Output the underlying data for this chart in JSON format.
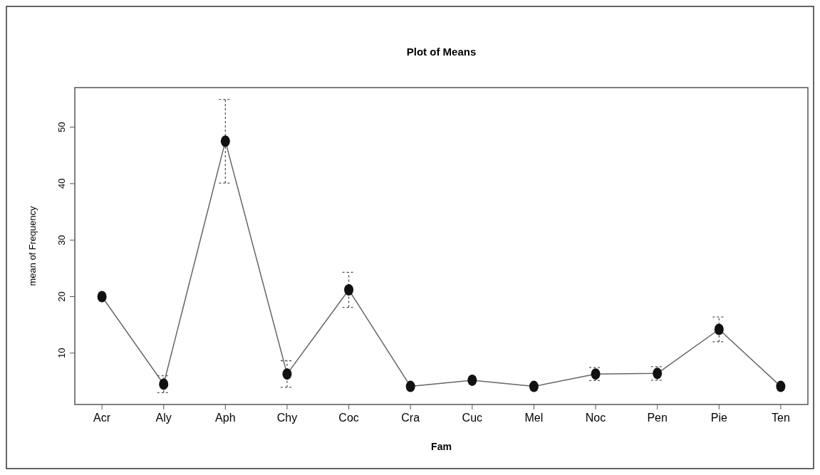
{
  "chart_data": {
    "type": "line",
    "title": "Plot of Means",
    "xlabel": "Fam",
    "ylabel": "mean of Frequency",
    "categories": [
      "Acr",
      "Aly",
      "Aph",
      "Chy",
      "Coc",
      "Cra",
      "Cuc",
      "Mel",
      "Noc",
      "Pen",
      "Pie",
      "Ten"
    ],
    "series": [
      {
        "color": "#111111",
        "values": [
          20.0,
          4.5,
          47.5,
          6.3,
          21.2,
          4.1,
          5.2,
          4.1,
          6.3,
          6.4,
          14.2,
          4.1
        ],
        "errors": [
          null,
          1.5,
          7.4,
          2.35,
          3.1,
          null,
          null,
          null,
          1.15,
          1.2,
          2.2,
          null
        ]
      }
    ],
    "ylim": [
      0.9,
      57
    ],
    "yticks": [
      10,
      20,
      30,
      40,
      50
    ],
    "marker": "circle",
    "grid": false
  }
}
